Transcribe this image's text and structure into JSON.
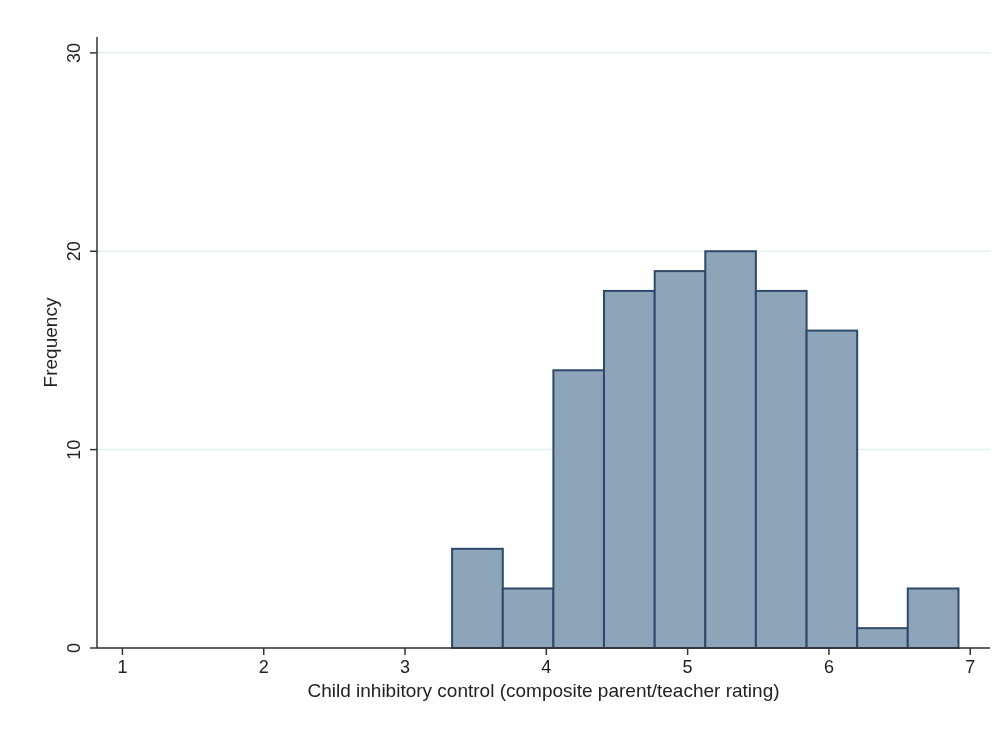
{
  "chart_data": {
    "type": "histogram",
    "xlabel": "Child inhibitory control (composite parent/teacher rating)",
    "ylabel": "Frequency",
    "bins": [
      3.333,
      3.692,
      4.05,
      4.408,
      4.767,
      5.125,
      5.483,
      5.842,
      6.2,
      6.558,
      6.917
    ],
    "values": [
      5,
      3,
      14,
      18,
      19,
      20,
      18,
      16,
      1,
      3
    ],
    "color": "#8ea4b8",
    "xlim": [
      0.82,
      7.14
    ],
    "xticks": [
      1,
      2,
      3,
      4,
      5,
      6,
      7
    ],
    "ylim": [
      0,
      30.8
    ],
    "yticks": [
      0,
      10,
      20,
      30
    ],
    "grid": "y"
  }
}
